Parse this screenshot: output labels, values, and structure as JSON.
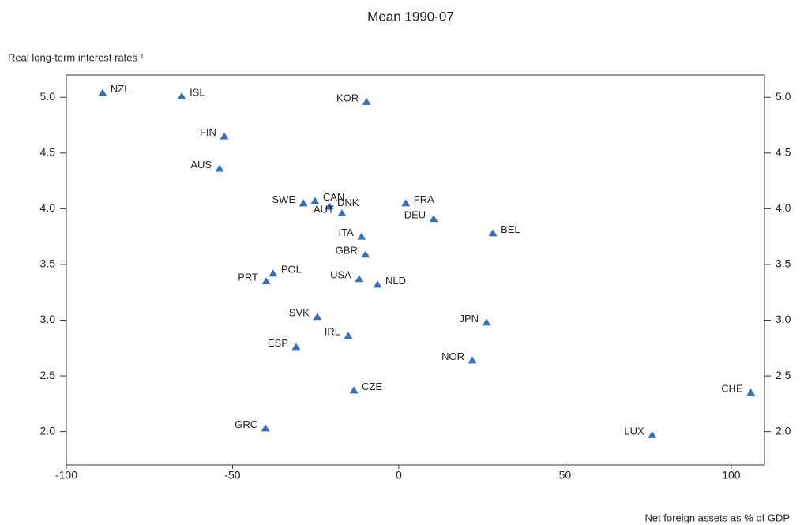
{
  "chart_data": {
    "type": "scatter",
    "title": "Mean 1990-07",
    "ylabel": "Real long-term interest rates ¹",
    "xlabel": "Net foreign assets as % of GDP",
    "color": "#3a6fb5",
    "labels": [
      "NZL",
      "ISL",
      "KOR",
      "FIN",
      "AUS",
      "SWE",
      "CAN",
      "DNK",
      "AUT",
      "FRA",
      "DEU",
      "ITA",
      "BEL",
      "GBR",
      "POL",
      "PRT",
      "USA",
      "NLD",
      "SVK",
      "JPN",
      "IRL",
      "ESP",
      "NOR",
      "CZE",
      "CHE",
      "GRC",
      "LUX"
    ],
    "x": [
      -89.1,
      -65.3,
      -9.7,
      -52.5,
      -53.9,
      -28.7,
      -25.2,
      -20.9,
      -17.1,
      2.1,
      10.5,
      -11.2,
      28.3,
      -10.0,
      -37.8,
      -39.9,
      -11.9,
      -6.4,
      -24.5,
      26.4,
      -15.2,
      -30.9,
      22.1,
      -13.5,
      105.9,
      -40.1,
      76.2
    ],
    "values": [
      5.04,
      5.01,
      4.96,
      4.65,
      4.36,
      4.05,
      4.07,
      4.02,
      3.96,
      4.05,
      3.91,
      3.75,
      3.78,
      3.59,
      3.42,
      3.35,
      3.37,
      3.32,
      3.03,
      2.98,
      2.86,
      2.76,
      2.64,
      2.37,
      2.35,
      2.03,
      1.97
    ],
    "xlim": [
      -100,
      110
    ],
    "xticks": [
      -100,
      -50,
      0,
      50,
      100
    ],
    "ylim": [
      1.7,
      5.2
    ],
    "yticks": [
      {
        "value": 2,
        "label": "2.0"
      },
      {
        "value": 2.5,
        "label": "2.5"
      },
      {
        "value": 3,
        "label": "3.0"
      },
      {
        "value": 3.5,
        "label": "3.5"
      },
      {
        "value": 4,
        "label": "4.0"
      },
      {
        "value": 4.5,
        "label": "4.5"
      },
      {
        "value": 5,
        "label": "5.0"
      }
    ],
    "y2lim": [
      1.7,
      5.2
    ],
    "y2ticks": [
      {
        "value": 2,
        "label": "2.0"
      },
      {
        "value": 2.5,
        "label": "2.5"
      },
      {
        "value": 3,
        "label": "3.0"
      },
      {
        "value": 3.5,
        "label": "3.5"
      },
      {
        "value": 4,
        "label": "4.0"
      },
      {
        "value": 4.5,
        "label": "4.5"
      },
      {
        "value": 5,
        "label": "5.0"
      }
    ]
  }
}
